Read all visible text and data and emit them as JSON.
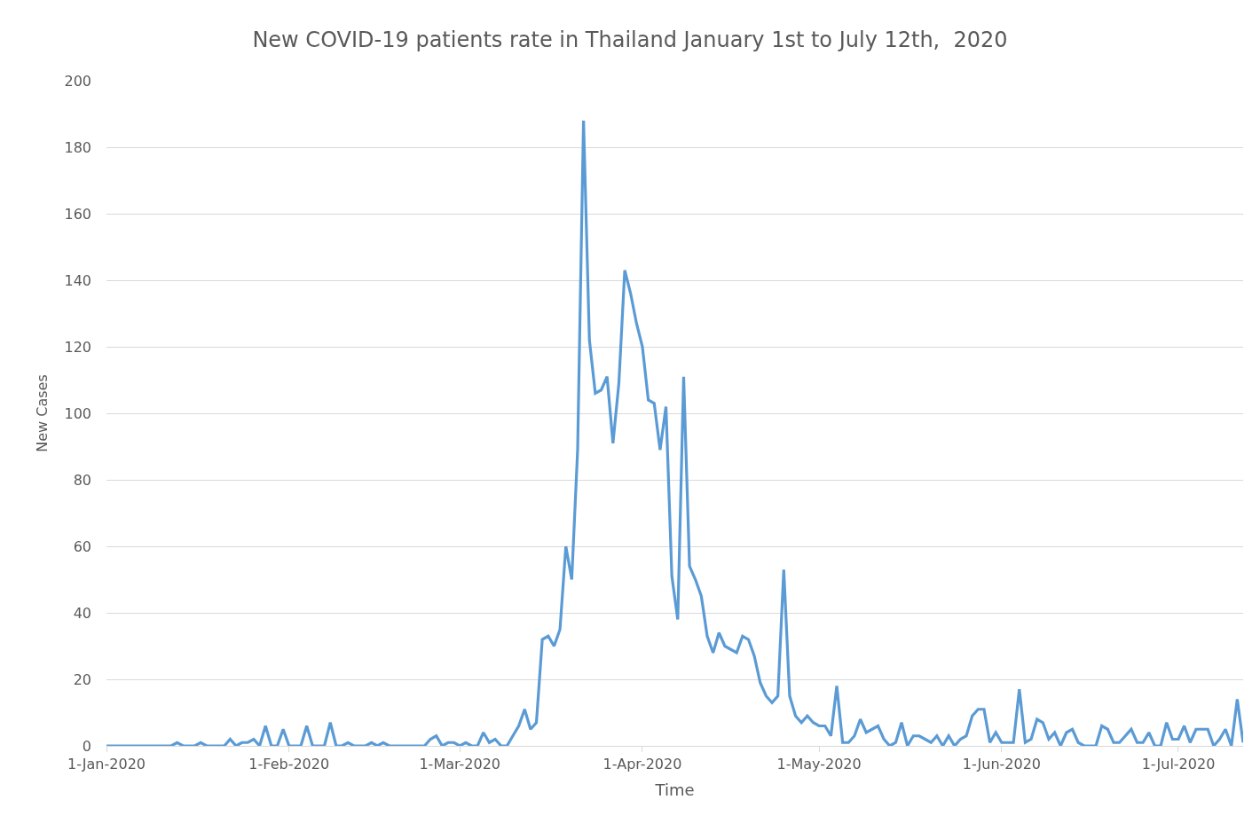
{
  "chart_data": {
    "type": "line",
    "title": "New COVID-19 patients rate in Thailand January 1st to July 12th,  2020",
    "xlabel": "Time",
    "ylabel": "New Cases",
    "x": [
      "2020-01-01",
      "2020-01-02",
      "2020-01-03",
      "2020-01-04",
      "2020-01-05",
      "2020-01-06",
      "2020-01-07",
      "2020-01-08",
      "2020-01-09",
      "2020-01-10",
      "2020-01-11",
      "2020-01-12",
      "2020-01-13",
      "2020-01-14",
      "2020-01-15",
      "2020-01-16",
      "2020-01-17",
      "2020-01-18",
      "2020-01-19",
      "2020-01-20",
      "2020-01-21",
      "2020-01-22",
      "2020-01-23",
      "2020-01-24",
      "2020-01-25",
      "2020-01-26",
      "2020-01-27",
      "2020-01-28",
      "2020-01-29",
      "2020-01-30",
      "2020-01-31",
      "2020-02-01",
      "2020-02-02",
      "2020-02-03",
      "2020-02-04",
      "2020-02-05",
      "2020-02-06",
      "2020-02-07",
      "2020-02-08",
      "2020-02-09",
      "2020-02-10",
      "2020-02-11",
      "2020-02-12",
      "2020-02-13",
      "2020-02-14",
      "2020-02-15",
      "2020-02-16",
      "2020-02-17",
      "2020-02-18",
      "2020-02-19",
      "2020-02-20",
      "2020-02-21",
      "2020-02-22",
      "2020-02-23",
      "2020-02-24",
      "2020-02-25",
      "2020-02-26",
      "2020-02-27",
      "2020-02-28",
      "2020-02-29",
      "2020-03-01",
      "2020-03-02",
      "2020-03-03",
      "2020-03-04",
      "2020-03-05",
      "2020-03-06",
      "2020-03-07",
      "2020-03-08",
      "2020-03-09",
      "2020-03-10",
      "2020-03-11",
      "2020-03-12",
      "2020-03-13",
      "2020-03-14",
      "2020-03-15",
      "2020-03-16",
      "2020-03-17",
      "2020-03-18",
      "2020-03-19",
      "2020-03-20",
      "2020-03-21",
      "2020-03-22",
      "2020-03-23",
      "2020-03-24",
      "2020-03-25",
      "2020-03-26",
      "2020-03-27",
      "2020-03-28",
      "2020-03-29",
      "2020-03-30",
      "2020-03-31",
      "2020-04-01",
      "2020-04-02",
      "2020-04-03",
      "2020-04-04",
      "2020-04-05",
      "2020-04-06",
      "2020-04-07",
      "2020-04-08",
      "2020-04-09",
      "2020-04-10",
      "2020-04-11",
      "2020-04-12",
      "2020-04-13",
      "2020-04-14",
      "2020-04-15",
      "2020-04-16",
      "2020-04-17",
      "2020-04-18",
      "2020-04-19",
      "2020-04-20",
      "2020-04-21",
      "2020-04-22",
      "2020-04-23",
      "2020-04-24",
      "2020-04-25",
      "2020-04-26",
      "2020-04-27",
      "2020-04-28",
      "2020-04-29",
      "2020-04-30",
      "2020-05-01",
      "2020-05-02",
      "2020-05-03",
      "2020-05-04",
      "2020-05-05",
      "2020-05-06",
      "2020-05-07",
      "2020-05-08",
      "2020-05-09",
      "2020-05-10",
      "2020-05-11",
      "2020-05-12",
      "2020-05-13",
      "2020-05-14",
      "2020-05-15",
      "2020-05-16",
      "2020-05-17",
      "2020-05-18",
      "2020-05-19",
      "2020-05-20",
      "2020-05-21",
      "2020-05-22",
      "2020-05-23",
      "2020-05-24",
      "2020-05-25",
      "2020-05-26",
      "2020-05-27",
      "2020-05-28",
      "2020-05-29",
      "2020-05-30",
      "2020-05-31",
      "2020-06-01",
      "2020-06-02",
      "2020-06-03",
      "2020-06-04",
      "2020-06-05",
      "2020-06-06",
      "2020-06-07",
      "2020-06-08",
      "2020-06-09",
      "2020-06-10",
      "2020-06-11",
      "2020-06-12",
      "2020-06-13",
      "2020-06-14",
      "2020-06-15",
      "2020-06-16",
      "2020-06-17",
      "2020-06-18",
      "2020-06-19",
      "2020-06-20",
      "2020-06-21",
      "2020-06-22",
      "2020-06-23",
      "2020-06-24",
      "2020-06-25",
      "2020-06-26",
      "2020-06-27",
      "2020-06-28",
      "2020-06-29",
      "2020-06-30",
      "2020-07-01",
      "2020-07-02",
      "2020-07-03",
      "2020-07-04",
      "2020-07-05",
      "2020-07-06",
      "2020-07-07",
      "2020-07-08",
      "2020-07-09",
      "2020-07-10",
      "2020-07-11",
      "2020-07-12"
    ],
    "series": [
      {
        "color": "#5b9bd5",
        "values": [
          0,
          0,
          0,
          0,
          0,
          0,
          0,
          0,
          0,
          0,
          0,
          0,
          1,
          0,
          0,
          0,
          1,
          0,
          0,
          0,
          0,
          2,
          0,
          1,
          1,
          2,
          0,
          6,
          0,
          0,
          5,
          0,
          0,
          0,
          6,
          0,
          0,
          0,
          7,
          0,
          0,
          1,
          0,
          0,
          0,
          1,
          0,
          1,
          0,
          0,
          0,
          0,
          0,
          0,
          0,
          2,
          3,
          0,
          1,
          1,
          0,
          1,
          0,
          0,
          4,
          1,
          2,
          0,
          0,
          3,
          6,
          11,
          5,
          7,
          32,
          33,
          30,
          35,
          60,
          50,
          89,
          188,
          122,
          106,
          107,
          111,
          91,
          109,
          143,
          136,
          127,
          120,
          104,
          103,
          89,
          102,
          51,
          38,
          111,
          54,
          50,
          45,
          33,
          28,
          34,
          30,
          29,
          28,
          33,
          32,
          27,
          19,
          15,
          13,
          15,
          53,
          15,
          9,
          7,
          9,
          7,
          6,
          6,
          3,
          18,
          1,
          1,
          3,
          8,
          4,
          5,
          6,
          2,
          0,
          1,
          7,
          0,
          3,
          3,
          2,
          1,
          3,
          0,
          3,
          0,
          2,
          3,
          9,
          11,
          11,
          1,
          4,
          1,
          1,
          1,
          17,
          1,
          2,
          8,
          7,
          2,
          4,
          0,
          4,
          5,
          1,
          0,
          0,
          0,
          6,
          5,
          1,
          1,
          3,
          5,
          1,
          1,
          4,
          0,
          0,
          7,
          2,
          2,
          6,
          1,
          5,
          5,
          5,
          0,
          2,
          5,
          0,
          14,
          1
        ]
      }
    ],
    "xlim": [
      "2020-01-01",
      "2020-07-12"
    ],
    "xticks": [
      {
        "value": "2020-01-01",
        "label": "1-Jan-2020"
      },
      {
        "value": "2020-02-01",
        "label": "1-Feb-2020"
      },
      {
        "value": "2020-03-01",
        "label": "1-Mar-2020"
      },
      {
        "value": "2020-04-01",
        "label": "1-Apr-2020"
      },
      {
        "value": "2020-05-01",
        "label": "1-May-2020"
      },
      {
        "value": "2020-06-01",
        "label": "1-Jun-2020"
      },
      {
        "value": "2020-07-01",
        "label": "1-Jul-2020"
      }
    ],
    "ylim": [
      0,
      200
    ],
    "yticks": [
      0,
      20,
      40,
      60,
      80,
      100,
      120,
      140,
      160,
      180,
      200
    ],
    "grid": "y",
    "marker": "none",
    "line_style": "solid"
  }
}
